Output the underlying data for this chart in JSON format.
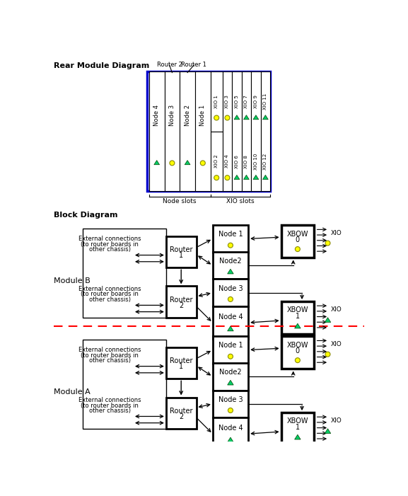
{
  "title_rear": "Rear Module Diagram",
  "title_block": "Block Diagram",
  "bg_color": "#ffffff",
  "blue_border": "#0000cc",
  "yellow_fill": "#ffff00",
  "yellow_edge": "#888800",
  "green_fill": "#00cc66",
  "green_edge": "#004400",
  "red_dash": "#ff0000",
  "node_slots_label": "Node slots",
  "xio_slots_label": "XIO slots",
  "rear_node_labels": [
    "Node 4",
    "Node 3",
    "Node 2",
    "Node 1"
  ],
  "rear_xio_top": [
    "XIO 1",
    "XIO 3",
    "XIO 5",
    "XIO 7",
    "XIO 9",
    "XIO 11"
  ],
  "rear_xio_bot": [
    "XIO 2",
    "XIO 4",
    "XIO 6",
    "XIO 8",
    "XIO 10",
    "XIO 12"
  ],
  "module_b_label": "Module B",
  "module_a_label": "Module A",
  "ext_line1": "External connections",
  "ext_line2": "(to router boards in",
  "ext_line3": "other chassis)"
}
